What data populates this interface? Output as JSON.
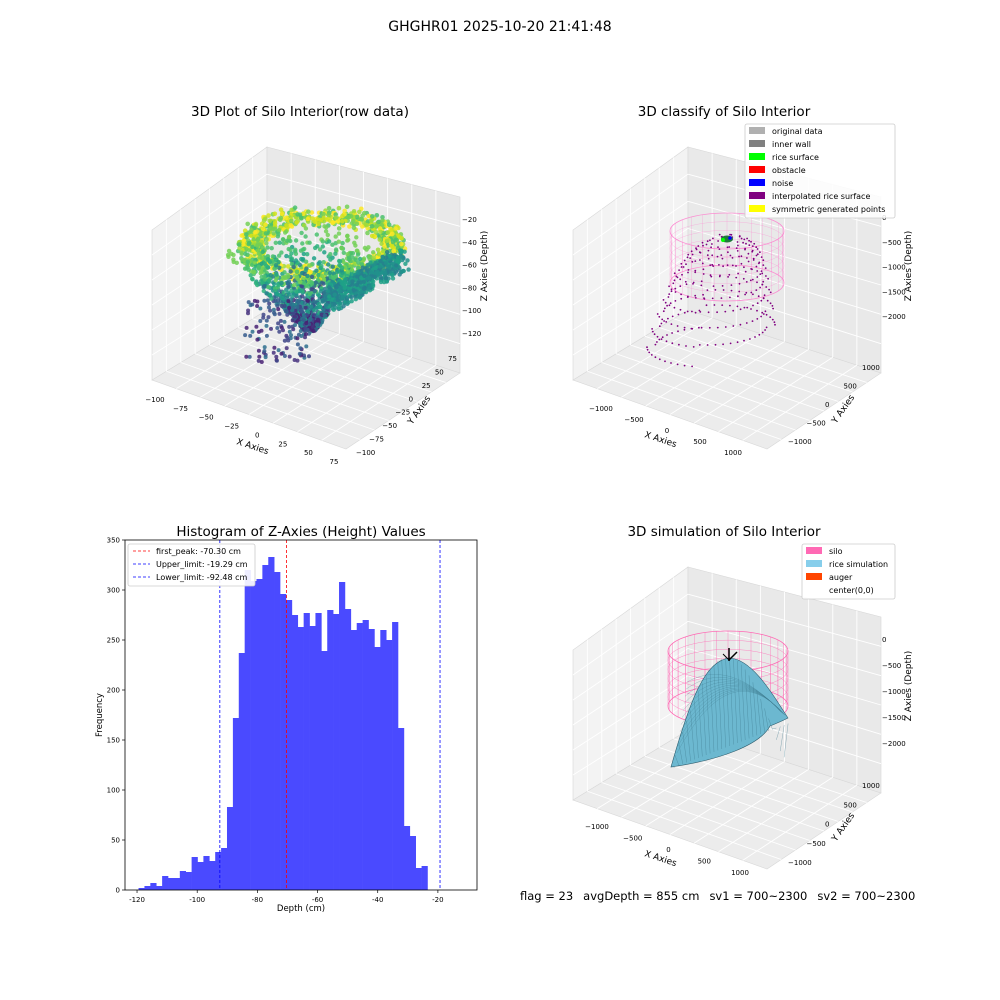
{
  "suptitle": "GHGHR01 2025-10-20 21:41:48",
  "footer": {
    "flag": "flag = 23",
    "avg_depth": "avgDepth = 855 cm",
    "sv1": "sv1 = 700~2300",
    "sv2": "sv2 = 700~2300"
  },
  "chart_data": [
    {
      "type": "scatter",
      "subtype": "3d",
      "title": "3D Plot of Silo Interior(row data)",
      "xlabel": "X Axies",
      "ylabel": "Y Axies",
      "zlabel": "Z Axies (Depth)",
      "x_ticks": [
        "−100",
        "−75",
        "−50",
        "−25",
        "0",
        "25",
        "50",
        "75"
      ],
      "y_ticks": [
        "−100",
        "−75",
        "−50",
        "−25",
        "0",
        "25",
        "50",
        "75"
      ],
      "z_ticks": [
        "−120",
        "−100",
        "−80",
        "−60",
        "−40",
        "−20"
      ],
      "xlim": [
        -110,
        80
      ],
      "ylim": [
        -110,
        85
      ],
      "zlim": [
        -130,
        -12
      ],
      "colormap": "viridis",
      "colors": {
        "low": "#440154",
        "mid": "#21918c",
        "high": "#fde725"
      }
    },
    {
      "type": "scatter",
      "subtype": "3d",
      "title": "3D classify of Silo Interior",
      "xlabel": "X Axies",
      "ylabel": "Y Axies",
      "zlabel": "Z Axies (Depth)",
      "x_ticks": [
        "−1000",
        "−500",
        "0",
        "500",
        "1000"
      ],
      "y_ticks": [
        "−1000",
        "−500",
        "0",
        "500",
        "1000"
      ],
      "z_ticks": [
        "−2000",
        "−1500",
        "−1000",
        "−500",
        "0"
      ],
      "legend_position": "top-right",
      "legend": [
        {
          "label": "original data",
          "color": "#b0b0b0"
        },
        {
          "label": "inner wall",
          "color": "#808080"
        },
        {
          "label": "rice surface",
          "color": "#00ff00"
        },
        {
          "label": "obstacle",
          "color": "#ff0000"
        },
        {
          "label": "noise",
          "color": "#0000ff"
        },
        {
          "label": "interpolated rice surface",
          "color": "#800080"
        },
        {
          "label": "symmetric generated points",
          "color": "#ffff00"
        }
      ],
      "wall_color": "#ff77cc"
    },
    {
      "type": "bar",
      "subtype": "histogram",
      "title": "Histogram of Z-Axies (Height) Values",
      "xlabel": "Depth (cm)",
      "ylabel": "Frequency",
      "xlim": [
        -124,
        -7
      ],
      "ylim": [
        0,
        350
      ],
      "x_ticks": [
        -120,
        -100,
        -80,
        -60,
        -40,
        -20
      ],
      "y_ticks": [
        0,
        50,
        100,
        150,
        200,
        250,
        300,
        350
      ],
      "bin_start": -119.5,
      "bin_width": 1.96,
      "values": [
        2,
        4,
        7,
        4,
        14,
        12,
        12,
        19,
        18,
        33,
        28,
        34,
        29,
        38,
        42,
        83,
        172,
        237,
        320,
        309,
        311,
        325,
        333,
        318,
        296,
        290,
        275,
        263,
        277,
        264,
        277,
        239,
        280,
        276,
        308,
        281,
        260,
        267,
        270,
        261,
        243,
        260,
        250,
        268,
        162,
        64,
        54,
        22,
        24
      ],
      "bar_color": "#4a4aff",
      "reference_lines": [
        {
          "label": "first_peak: -70.30 cm",
          "value": -70.3,
          "color": "#ff0000"
        },
        {
          "label": "Upper_limit: -19.29 cm",
          "value": -19.29,
          "color": "#0000ff"
        },
        {
          "label": "Lower_limit: -92.48 cm",
          "value": -92.48,
          "color": "#0000ff"
        }
      ],
      "legend_position": "top-left"
    },
    {
      "type": "area",
      "subtype": "3d-surface",
      "title": "3D simulation of Silo Interior",
      "xlabel": "X Axies",
      "ylabel": "Y Axies",
      "zlabel": "Z Axies (Depth)",
      "x_ticks": [
        "−1000",
        "−500",
        "0",
        "500",
        "1000"
      ],
      "y_ticks": [
        "−1000",
        "−500",
        "0",
        "500",
        "1000"
      ],
      "z_ticks": [
        "−2000",
        "−1500",
        "−1000",
        "−500",
        "0"
      ],
      "legend_position": "top-right",
      "legend": [
        {
          "label": "silo",
          "color": "#ff69b4"
        },
        {
          "label": "rice simulation",
          "color": "#87ceeb"
        },
        {
          "label": "auger",
          "color": "#ff4500"
        },
        {
          "label": "center(0,0)",
          "color": ""
        }
      ],
      "surface_color": "#6cb8d0"
    }
  ]
}
